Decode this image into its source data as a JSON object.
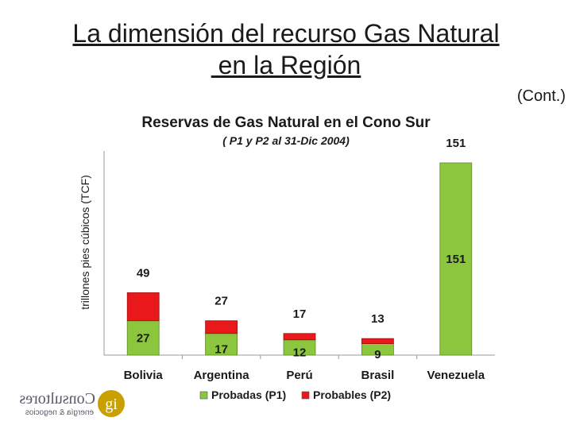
{
  "slide": {
    "title_line1": "La dimensión del recurso Gas Natural",
    "title_line2": " en la Región",
    "cont": "(Cont.)"
  },
  "colors": {
    "probadas": "#8cc63f",
    "probables": "#e8181b",
    "title": "#1a1a1a"
  },
  "chart_data": {
    "type": "bar",
    "stacked": true,
    "title": "Reservas de Gas Natural en el Cono Sur",
    "subtitle": "( P1 y P2 al 31-Dic 2004)",
    "ylabel": "trillones pies cúbicos (TCF)",
    "xlabel": "",
    "categories": [
      "Bolivia",
      "Argentina",
      "Perú",
      "Brasil",
      "Venezuela"
    ],
    "series": [
      {
        "name": "Probadas (P1)",
        "values": [
          27,
          17,
          12,
          9,
          151
        ]
      },
      {
        "name": "Probables (P2)",
        "values": [
          22,
          10,
          5,
          4,
          0
        ]
      }
    ],
    "totals": [
      49,
      27,
      17,
      13,
      151
    ],
    "ylim": [
      0,
      151
    ],
    "grid": false,
    "legend_position": "bottom"
  },
  "logo": {
    "word": "Consultores",
    "tagline": "energía & negocios",
    "mark": "gi"
  }
}
